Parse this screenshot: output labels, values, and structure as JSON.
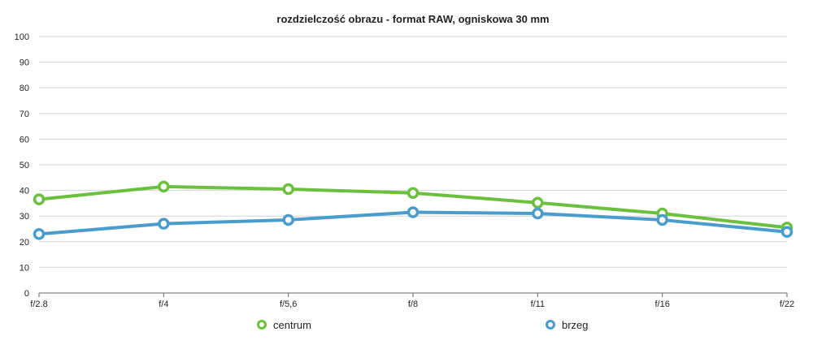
{
  "chart_data": {
    "type": "line",
    "title": "rozdzielczość obrazu - format RAW, ogniskowa 30 mm",
    "xlabel": "",
    "ylabel": "",
    "categories": [
      "f/2.8",
      "f/4",
      "f/5,6",
      "f/8",
      "f/11",
      "f/16",
      "f/22"
    ],
    "ylim": [
      0,
      100
    ],
    "yticks": [
      0,
      10,
      20,
      30,
      40,
      50,
      60,
      70,
      80,
      90,
      100
    ],
    "grid": true,
    "legend_position": "bottom",
    "series": [
      {
        "name": "centrum",
        "color": "#6cc040",
        "values": [
          36.5,
          41.5,
          40.5,
          39,
          35.2,
          31,
          25.5
        ]
      },
      {
        "name": "brzeg",
        "color": "#4a9ccc",
        "values": [
          23,
          27,
          28.5,
          31.5,
          31,
          28.5,
          23.8
        ]
      }
    ]
  }
}
